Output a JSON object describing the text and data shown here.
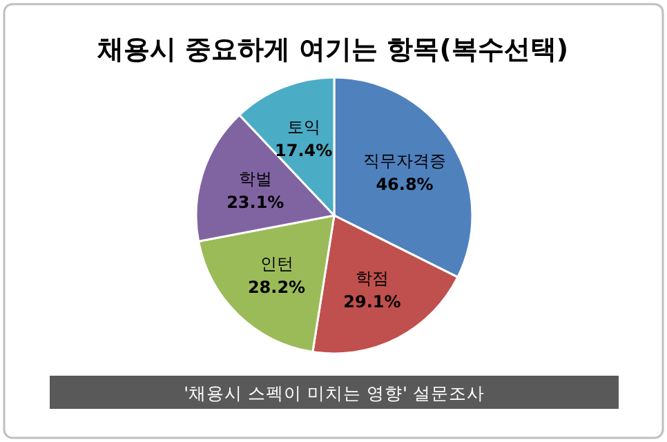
{
  "chart_data": {
    "type": "pie",
    "title": "채용시 중요하게 여기는 항목(복수선택)",
    "categories": [
      "직무자격증",
      "학점",
      "인턴",
      "학벌",
      "토익"
    ],
    "values": [
      46.8,
      29.1,
      28.2,
      23.1,
      17.4
    ],
    "value_labels": [
      "46.8%",
      "29.1%",
      "28.2%",
      "23.1%",
      "17.4%"
    ],
    "colors": [
      "#4f81bd",
      "#c0504d",
      "#9bbb59",
      "#8064a2",
      "#4bacc6"
    ],
    "annotations": [
      "'채용시 스펙이 미치는 영향' 설문조사"
    ]
  }
}
